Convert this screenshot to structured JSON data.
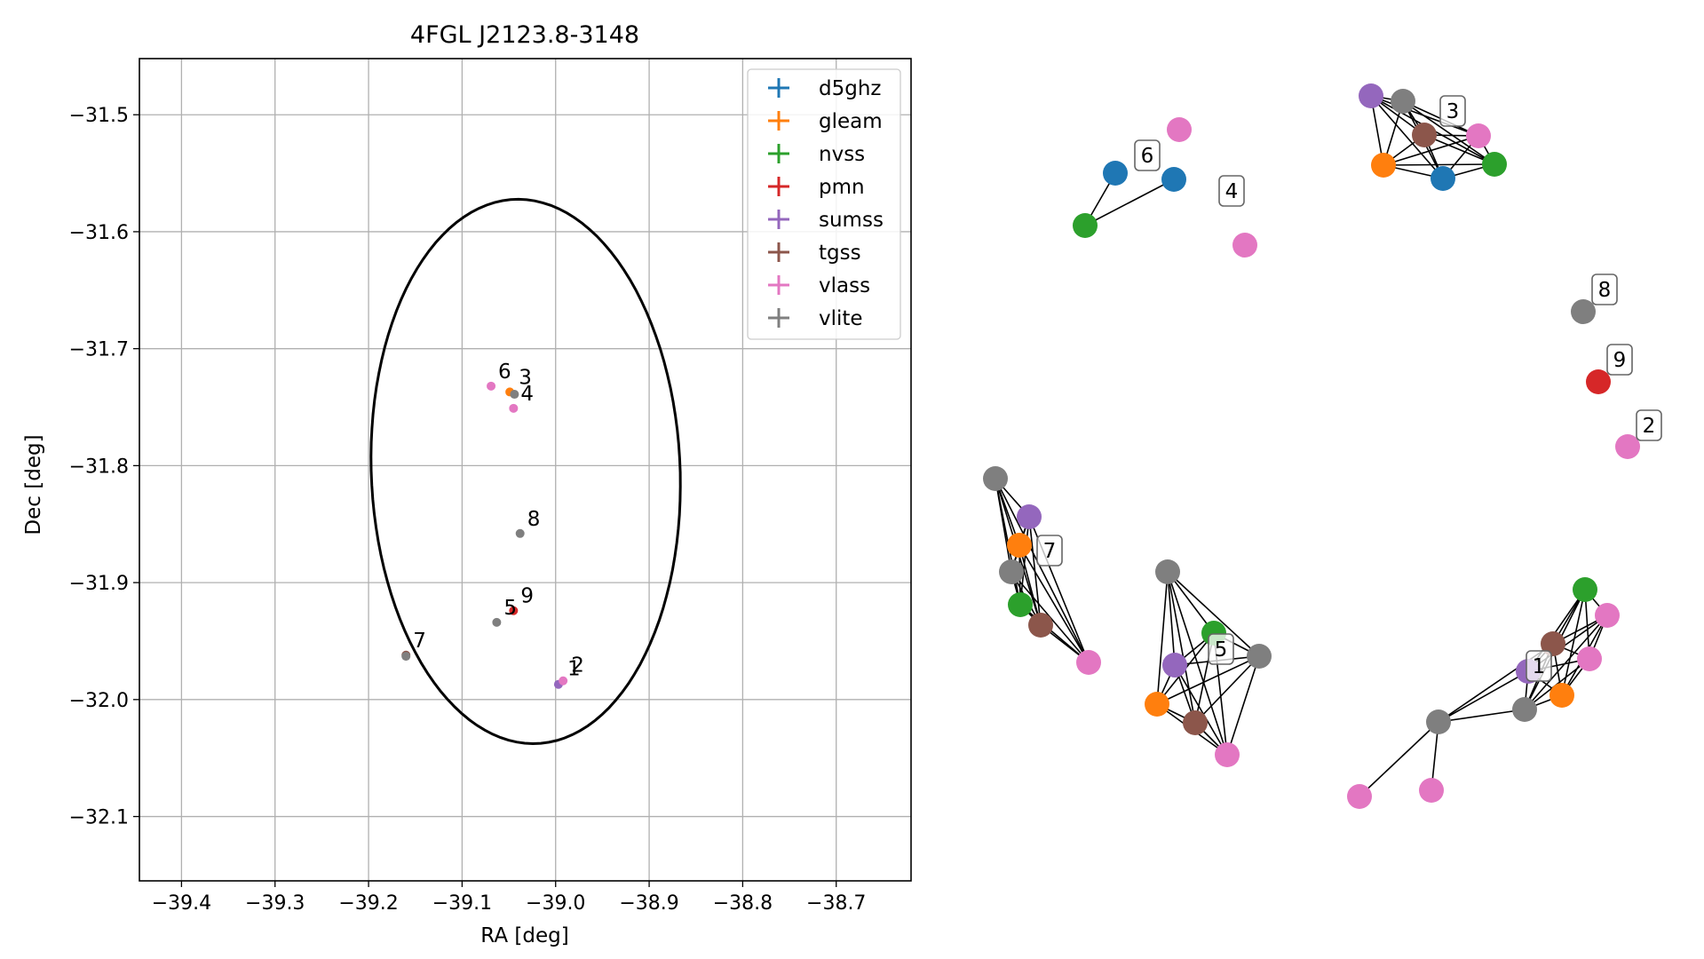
{
  "chart_data": [
    {
      "type": "scatter",
      "title": "4FGL J2123.8-3148",
      "xlabel": "RA [deg]",
      "ylabel": "Dec [deg]",
      "xlim": [
        -39.445,
        -38.62
      ],
      "ylim": [
        -32.155,
        -31.452
      ],
      "xticks": [
        -39.4,
        -39.3,
        -39.2,
        -39.1,
        -39.0,
        -38.9,
        -38.8,
        -38.7
      ],
      "xtick_labels": [
        "−39.4",
        "−39.3",
        "−39.2",
        "−39.1",
        "−39.0",
        "−38.9",
        "−38.8",
        "−38.7"
      ],
      "yticks": [
        -31.5,
        -31.6,
        -31.7,
        -31.8,
        -31.9,
        -32.0,
        -32.1
      ],
      "ytick_labels": [
        "−31.5",
        "−31.6",
        "−31.7",
        "−31.8",
        "−31.9",
        "−32.0",
        "−32.1"
      ],
      "grid": true,
      "legend_position": "top-right",
      "ellipse": {
        "center": [
          -39.032,
          -31.805
        ],
        "semi_axis_ra": 0.165,
        "semi_axis_dec": 0.233,
        "angle_deg": 4
      },
      "series": [
        {
          "name": "d5ghz",
          "color": "#1f77b4",
          "points": []
        },
        {
          "name": "gleam",
          "color": "#ff7f0e",
          "points": [
            [
              -39.049,
              -31.737
            ]
          ]
        },
        {
          "name": "nvss",
          "color": "#2ca02c",
          "points": []
        },
        {
          "name": "pmn",
          "color": "#d62728",
          "points": [
            [
              -39.045,
              -31.924
            ]
          ]
        },
        {
          "name": "sumss",
          "color": "#9467bd",
          "points": [
            [
              -38.997,
              -31.987
            ]
          ]
        },
        {
          "name": "tgss",
          "color": "#8c564b",
          "points": [
            [
              -39.16,
              -31.962
            ]
          ]
        },
        {
          "name": "vlass",
          "color": "#e377c2",
          "points": [
            [
              -39.069,
              -31.732
            ],
            [
              -39.045,
              -31.751
            ],
            [
              -38.992,
              -31.984
            ]
          ]
        },
        {
          "name": "vlite",
          "color": "#7f7f7f",
          "points": [
            [
              -39.044,
              -31.739
            ],
            [
              -39.038,
              -31.858
            ],
            [
              -39.063,
              -31.934
            ],
            [
              -39.16,
              -31.963
            ]
          ]
        }
      ],
      "annotations": [
        {
          "text": "6",
          "x": -39.069,
          "y": -31.732
        },
        {
          "text": "3",
          "x": -39.047,
          "y": -31.737
        },
        {
          "text": "4",
          "x": -39.045,
          "y": -31.751
        },
        {
          "text": "8",
          "x": -39.038,
          "y": -31.858
        },
        {
          "text": "5",
          "x": -39.063,
          "y": -31.934
        },
        {
          "text": "9",
          "x": -39.045,
          "y": -31.924
        },
        {
          "text": "7",
          "x": -39.16,
          "y": -31.962
        },
        {
          "text": "2",
          "x": -38.991,
          "y": -31.983
        },
        {
          "text": "1",
          "x": -38.995,
          "y": -31.986
        }
      ]
    },
    {
      "type": "network",
      "colors": {
        "d5ghz": "#1f77b4",
        "gleam": "#ff7f0e",
        "nvss": "#2ca02c",
        "pmn": "#d62728",
        "sumss": "#9467bd",
        "tgss": "#8c564b",
        "vlass": "#e377c2",
        "vlite": "#7f7f7f"
      },
      "clusters": [
        {
          "label": "6",
          "nodes": [
            "d5ghz",
            "d5ghz",
            "nvss",
            "vlass"
          ]
        },
        {
          "label": "4",
          "nodes": [
            "vlass"
          ]
        },
        {
          "label": "3",
          "nodes": [
            "sumss",
            "vlite",
            "tgss",
            "gleam",
            "vlass",
            "d5ghz",
            "nvss"
          ]
        },
        {
          "label": "8",
          "nodes": [
            "vlite"
          ]
        },
        {
          "label": "9",
          "nodes": [
            "pmn"
          ]
        },
        {
          "label": "2",
          "nodes": [
            "vlass"
          ]
        },
        {
          "label": "7",
          "nodes": [
            "vlite",
            "sumss",
            "gleam",
            "vlite",
            "nvss",
            "tgss",
            "vlass"
          ]
        },
        {
          "label": "5",
          "nodes": [
            "vlite",
            "nvss",
            "vlite",
            "sumss",
            "gleam",
            "tgss",
            "vlass"
          ]
        },
        {
          "label": "1",
          "nodes": [
            "nvss",
            "vlass",
            "tgss",
            "sumss",
            "vlass",
            "gleam",
            "vlite",
            "vlite",
            "vlass",
            "vlass"
          ]
        }
      ]
    }
  ]
}
